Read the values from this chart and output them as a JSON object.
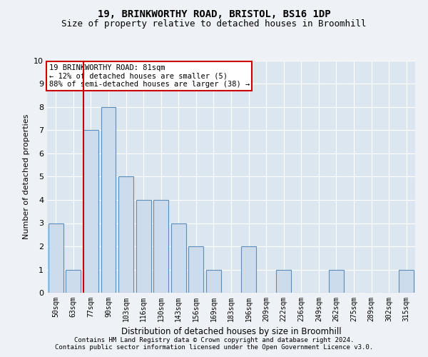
{
  "title1": "19, BRINKWORTHY ROAD, BRISTOL, BS16 1DP",
  "title2": "Size of property relative to detached houses in Broomhill",
  "xlabel": "Distribution of detached houses by size in Broomhill",
  "ylabel": "Number of detached properties",
  "bins": [
    "50sqm",
    "63sqm",
    "77sqm",
    "90sqm",
    "103sqm",
    "116sqm",
    "130sqm",
    "143sqm",
    "156sqm",
    "169sqm",
    "183sqm",
    "196sqm",
    "209sqm",
    "222sqm",
    "236sqm",
    "249sqm",
    "262sqm",
    "275sqm",
    "289sqm",
    "302sqm",
    "315sqm"
  ],
  "values": [
    3,
    1,
    7,
    8,
    5,
    4,
    4,
    3,
    2,
    1,
    0,
    2,
    0,
    1,
    0,
    0,
    1,
    0,
    0,
    0,
    1
  ],
  "bar_color": "#ccdcec",
  "bar_edge_color": "#5b8db8",
  "red_line_x": 2,
  "annotation_lines": [
    "19 BRINKWORTHY ROAD: 81sqm",
    "← 12% of detached houses are smaller (5)",
    "88% of semi-detached houses are larger (38) →"
  ],
  "ylim": [
    0,
    10
  ],
  "yticks": [
    0,
    1,
    2,
    3,
    4,
    5,
    6,
    7,
    8,
    9,
    10
  ],
  "footer1": "Contains HM Land Registry data © Crown copyright and database right 2024.",
  "footer2": "Contains public sector information licensed under the Open Government Licence v3.0.",
  "bg_color": "#eef2f7",
  "plot_bg_color": "#dce6f0",
  "grid_color": "#ffffff",
  "annotation_box_color": "#ffffff",
  "annotation_box_edge": "#cc0000",
  "red_line_color": "#cc0000",
  "title1_fontsize": 10,
  "title2_fontsize": 9,
  "annotation_fontsize": 7.5,
  "tick_fontsize": 7,
  "ylabel_fontsize": 8,
  "xlabel_fontsize": 8.5,
  "footer_fontsize": 6.5
}
